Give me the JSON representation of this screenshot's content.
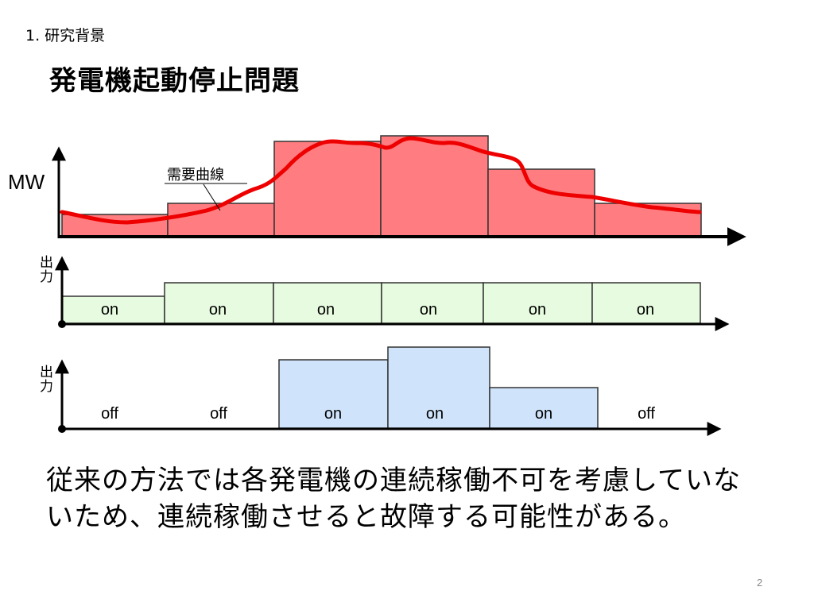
{
  "header": {
    "section_label": "1. 研究背景",
    "title": "発電機起動停止問題"
  },
  "demand_chart": {
    "y_axis_label": "MW",
    "curve_label": "需要曲線",
    "colors": {
      "bar_fill": "#ff7c80",
      "bar_stroke": "#333333",
      "curve": "#ee0000"
    }
  },
  "panel_a": {
    "output_label": "出力",
    "states": [
      "on",
      "on",
      "on",
      "on",
      "on",
      "on"
    ],
    "colors": {
      "fill": "#e6fbdf",
      "stroke": "#333333"
    }
  },
  "panel_b": {
    "output_label": "出力",
    "states": [
      "off",
      "off",
      "on",
      "on",
      "on",
      "off"
    ],
    "colors": {
      "fill": "#cfe4fb",
      "stroke": "#333333"
    }
  },
  "body": {
    "text": "従来の方法では各発電機の連続稼働不可を考慮していないため、連続稼働させると故障する可能性がある。"
  },
  "footer": {
    "page_number": "2"
  }
}
